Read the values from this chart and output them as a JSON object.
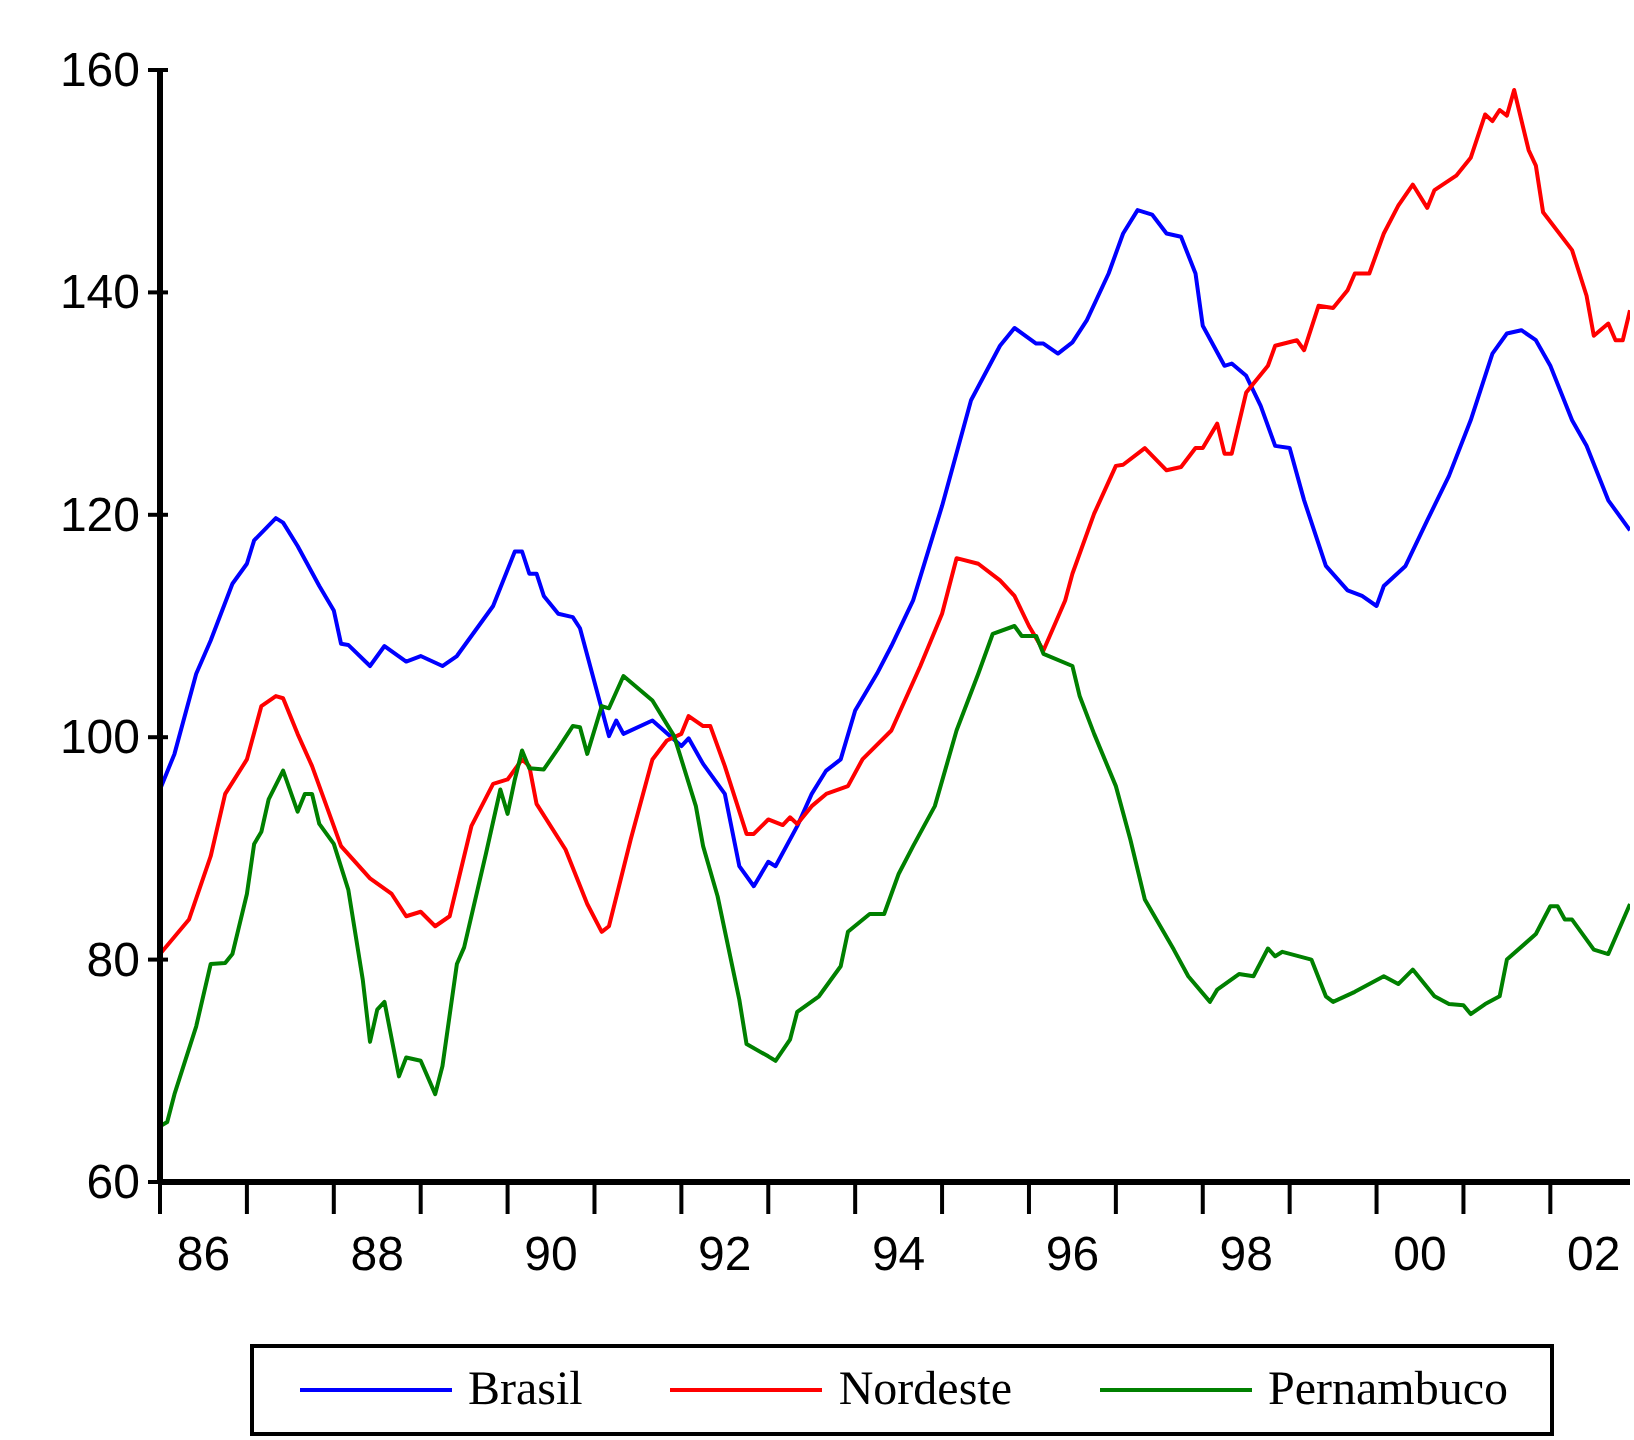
{
  "chart_data": {
    "type": "line",
    "xlim": [
      "1986-01",
      "2002-12"
    ],
    "xticks": [
      {
        "value": "1986-01",
        "label": null
      },
      {
        "value": "1986-07",
        "label": "86"
      },
      {
        "value": "1987-01",
        "label": null
      },
      {
        "value": "1988-01",
        "label": null
      },
      {
        "value": "1988-07",
        "label": "88"
      },
      {
        "value": "1989-01",
        "label": null
      },
      {
        "value": "1990-01",
        "label": null
      },
      {
        "value": "1990-07",
        "label": "90"
      },
      {
        "value": "1991-01",
        "label": null
      },
      {
        "value": "1992-01",
        "label": null
      },
      {
        "value": "1992-07",
        "label": "92"
      },
      {
        "value": "1993-01",
        "label": null
      },
      {
        "value": "1994-01",
        "label": null
      },
      {
        "value": "1994-07",
        "label": "94"
      },
      {
        "value": "1995-01",
        "label": null
      },
      {
        "value": "1996-01",
        "label": null
      },
      {
        "value": "1996-07",
        "label": "96"
      },
      {
        "value": "1997-01",
        "label": null
      },
      {
        "value": "1998-01",
        "label": null
      },
      {
        "value": "1998-07",
        "label": "98"
      },
      {
        "value": "1999-01",
        "label": null
      },
      {
        "value": "2000-01",
        "label": null
      },
      {
        "value": "2000-07",
        "label": "00"
      },
      {
        "value": "2001-01",
        "label": null
      },
      {
        "value": "2002-01",
        "label": null
      },
      {
        "value": "2002-07",
        "label": "02"
      }
    ],
    "ylim": [
      60,
      160
    ],
    "yticks": [
      60,
      80,
      100,
      120,
      140,
      160
    ],
    "grid": false,
    "legend": "bottom",
    "marker": "none",
    "line_style": "solid",
    "series": [
      {
        "name": "Brasil",
        "color": "#0000ff",
        "x": [
          "1986-01",
          "1986-03",
          "1986-06",
          "1986-08",
          "1986-11",
          "1987-01",
          "1987-02",
          "1987-05",
          "1987-06",
          "1987-08",
          "1987-11",
          "1988-01",
          "1988-02",
          "1988-03",
          "1988-06",
          "1988-08",
          "1988-11",
          "1989-01",
          "1989-04",
          "1989-06",
          "1989-09",
          "1989-11",
          "1990-02",
          "1990-03",
          "1990-04",
          "1990-05",
          "1990-06",
          "1990-08",
          "1990-10",
          "1990-11",
          "1991-03",
          "1991-04",
          "1991-05",
          "1991-09",
          "1992-01",
          "1992-02",
          "1992-04",
          "1992-07",
          "1992-09",
          "1992-11",
          "1993-01",
          "1993-02",
          "1993-05",
          "1993-07",
          "1993-09",
          "1993-11",
          "1994-01",
          "1994-04",
          "1994-06",
          "1994-09",
          "1995-01",
          "1995-05",
          "1995-09",
          "1995-11",
          "1996-02",
          "1996-03",
          "1996-05",
          "1996-07",
          "1996-09",
          "1996-12",
          "1997-02",
          "1997-04",
          "1997-06",
          "1997-08",
          "1997-10",
          "1997-12",
          "1998-01",
          "1998-04",
          "1998-05",
          "1998-07",
          "1998-09",
          "1998-11",
          "1999-01",
          "1999-03",
          "1999-06",
          "1999-09",
          "1999-11",
          "2000-01",
          "2000-02",
          "2000-05",
          "2000-08",
          "2000-11",
          "2001-02",
          "2001-05",
          "2001-07",
          "2001-09",
          "2001-11",
          "2002-01",
          "2002-04",
          "2002-06",
          "2002-09",
          "2002-12"
        ],
        "values": [
          95.3,
          98.5,
          105.7,
          108.7,
          113.8,
          115.6,
          117.7,
          119.7,
          119.3,
          117.2,
          113.6,
          111.4,
          108.4,
          108.3,
          106.4,
          108.2,
          106.8,
          107.3,
          106.4,
          107.3,
          110,
          111.8,
          116.7,
          116.7,
          114.7,
          114.7,
          112.7,
          111.1,
          110.8,
          109.8,
          100.1,
          101.5,
          100.3,
          101.5,
          99.2,
          99.9,
          97.6,
          94.9,
          88.4,
          86.6,
          88.8,
          88.4,
          92,
          94.9,
          97,
          98,
          102.4,
          105.7,
          108.2,
          112.3,
          120.8,
          130.3,
          135.2,
          136.8,
          135.4,
          135.4,
          134.5,
          135.5,
          137.5,
          141.7,
          145.3,
          147.4,
          147,
          145.3,
          145,
          141.7,
          137,
          133.4,
          133.6,
          132.5,
          129.8,
          126.2,
          126,
          121.3,
          115.4,
          113.2,
          112.7,
          111.8,
          113.6,
          115.4,
          119.5,
          123.5,
          128.5,
          134.5,
          136.3,
          136.6,
          135.7,
          133.4,
          128.5,
          126.2,
          121.3,
          118.6
        ]
      },
      {
        "name": "Nordeste",
        "color": "#ff0000",
        "x": [
          "1986-01",
          "1986-05",
          "1986-08",
          "1986-10",
          "1987-01",
          "1987-03",
          "1987-05",
          "1987-06",
          "1987-08",
          "1987-10",
          "1988-02",
          "1988-06",
          "1988-09",
          "1988-11",
          "1989-01",
          "1989-03",
          "1989-05",
          "1989-08",
          "1989-11",
          "1990-01",
          "1990-03",
          "1990-04",
          "1990-05",
          "1990-09",
          "1990-12",
          "1991-02",
          "1991-03",
          "1991-06",
          "1991-09",
          "1991-11",
          "1992-01",
          "1992-02",
          "1992-04",
          "1992-05",
          "1992-07",
          "1992-10",
          "1992-11",
          "1993-01",
          "1993-03",
          "1993-04",
          "1993-05",
          "1993-07",
          "1993-09",
          "1993-12",
          "1994-02",
          "1994-06",
          "1994-10",
          "1995-01",
          "1995-03",
          "1995-06",
          "1995-09",
          "1995-11",
          "1996-01",
          "1996-03",
          "1996-06",
          "1996-07",
          "1996-10",
          "1997-01",
          "1997-02",
          "1997-05",
          "1997-08",
          "1997-10",
          "1997-12",
          "1998-01",
          "1998-03",
          "1998-04",
          "1998-05",
          "1998-07",
          "1998-10",
          "1998-11",
          "1999-02",
          "1999-03",
          "1999-05",
          "1999-07",
          "1999-09",
          "1999-10",
          "1999-12",
          "2000-02",
          "2000-04",
          "2000-06",
          "2000-08",
          "2000-09",
          "2000-12",
          "2001-02",
          "2001-04",
          "2001-05",
          "2001-06",
          "2001-07",
          "2001-08",
          "2001-10",
          "2001-11",
          "2001-12",
          "2002-04",
          "2002-06",
          "2002-07",
          "2002-09",
          "2002-10",
          "2002-11",
          "2002-12"
        ],
        "values": [
          80.5,
          83.6,
          89.3,
          94.9,
          98,
          102.8,
          103.7,
          103.5,
          100.3,
          97.4,
          90.2,
          87.3,
          85.9,
          83.9,
          84.3,
          83,
          83.9,
          92,
          95.8,
          96.2,
          98,
          97.4,
          94,
          89.9,
          85,
          82.5,
          83,
          90.8,
          98,
          99.7,
          100.3,
          101.9,
          101,
          101,
          97.4,
          91.3,
          91.3,
          92.6,
          92.1,
          92.8,
          92.2,
          93.8,
          94.9,
          95.6,
          98,
          100.6,
          106.4,
          111.1,
          116.1,
          115.6,
          114.1,
          112.7,
          110,
          107.8,
          112.3,
          114.7,
          120.1,
          124.4,
          124.5,
          126,
          124,
          124.3,
          126,
          126,
          128.2,
          125.5,
          125.5,
          131,
          133.4,
          135.2,
          135.7,
          134.8,
          138.8,
          138.6,
          140.2,
          141.7,
          141.7,
          145.3,
          147.8,
          149.7,
          147.6,
          149.2,
          150.5,
          152.1,
          156,
          155.4,
          156.4,
          155.9,
          158.2,
          152.8,
          151.4,
          147.2,
          143.8,
          139.7,
          136.1,
          137.2,
          135.7,
          135.7,
          138.4
        ]
      },
      {
        "name": "Pernambuco",
        "color": "#008000",
        "x": [
          "1986-01",
          "1986-02",
          "1986-03",
          "1986-06",
          "1986-08",
          "1986-10",
          "1986-11",
          "1987-01",
          "1987-02",
          "1987-03",
          "1987-04",
          "1987-06",
          "1987-08",
          "1987-09",
          "1987-10",
          "1987-11",
          "1988-01",
          "1988-03",
          "1988-05",
          "1988-06",
          "1988-07",
          "1988-08",
          "1988-10",
          "1988-11",
          "1989-01",
          "1989-03",
          "1989-04",
          "1989-06",
          "1989-07",
          "1989-10",
          "1989-12",
          "1990-01",
          "1990-02",
          "1990-03",
          "1990-04",
          "1990-06",
          "1990-08",
          "1990-10",
          "1990-11",
          "1990-12",
          "1991-02",
          "1991-03",
          "1991-05",
          "1991-09",
          "1991-12",
          "1992-03",
          "1992-04",
          "1992-06",
          "1992-09",
          "1992-10",
          "1993-01",
          "1993-02",
          "1993-04",
          "1993-05",
          "1993-08",
          "1993-11",
          "1993-12",
          "1994-03",
          "1994-05",
          "1994-07",
          "1994-09",
          "1994-12",
          "1995-03",
          "1995-06",
          "1995-08",
          "1995-11",
          "1995-12",
          "1996-02",
          "1996-03",
          "1996-07",
          "1996-08",
          "1996-10",
          "1997-01",
          "1997-03",
          "1997-05",
          "1997-09",
          "1997-11",
          "1998-02",
          "1998-03",
          "1998-06",
          "1998-08",
          "1998-10",
          "1998-11",
          "1998-12",
          "1999-04",
          "1999-06",
          "1999-07",
          "1999-10",
          "1999-12",
          "2000-02",
          "2000-04",
          "2000-06",
          "2000-09",
          "2000-11",
          "2001-01",
          "2001-02",
          "2001-04",
          "2001-06",
          "2001-07",
          "2001-11",
          "2002-01",
          "2002-02",
          "2002-03",
          "2002-04",
          "2002-07",
          "2002-09",
          "2002-12"
        ],
        "values": [
          65,
          65.4,
          67.9,
          74,
          79.6,
          79.7,
          80.5,
          85.9,
          90.4,
          91.5,
          94.4,
          97,
          93.3,
          94.9,
          94.9,
          92.2,
          90.4,
          86.3,
          78.2,
          72.6,
          75.5,
          76.2,
          69.5,
          71.2,
          70.9,
          67.9,
          70.4,
          79.6,
          81.1,
          89.5,
          95.3,
          93.1,
          96.2,
          98.8,
          97.2,
          97.1,
          99,
          101,
          100.9,
          98.5,
          102.8,
          102.6,
          105.5,
          103.3,
          100.1,
          93.8,
          90.2,
          85.7,
          76.4,
          72.4,
          71.3,
          70.9,
          72.8,
          75.3,
          76.7,
          79.4,
          82.5,
          84.1,
          84.1,
          87.7,
          90.2,
          93.8,
          100.6,
          105.7,
          109.3,
          110,
          109.1,
          109.1,
          107.5,
          106.4,
          103.7,
          100.3,
          95.6,
          90.8,
          85.4,
          80.9,
          78.5,
          76.2,
          77.3,
          78.7,
          78.5,
          81,
          80.3,
          80.7,
          80,
          76.7,
          76.2,
          77.1,
          77.8,
          78.5,
          77.8,
          79.1,
          76.7,
          76,
          75.9,
          75.1,
          76,
          76.7,
          80,
          82.3,
          84.8,
          84.8,
          83.6,
          83.6,
          80.9,
          80.5,
          85
        ]
      }
    ]
  }
}
